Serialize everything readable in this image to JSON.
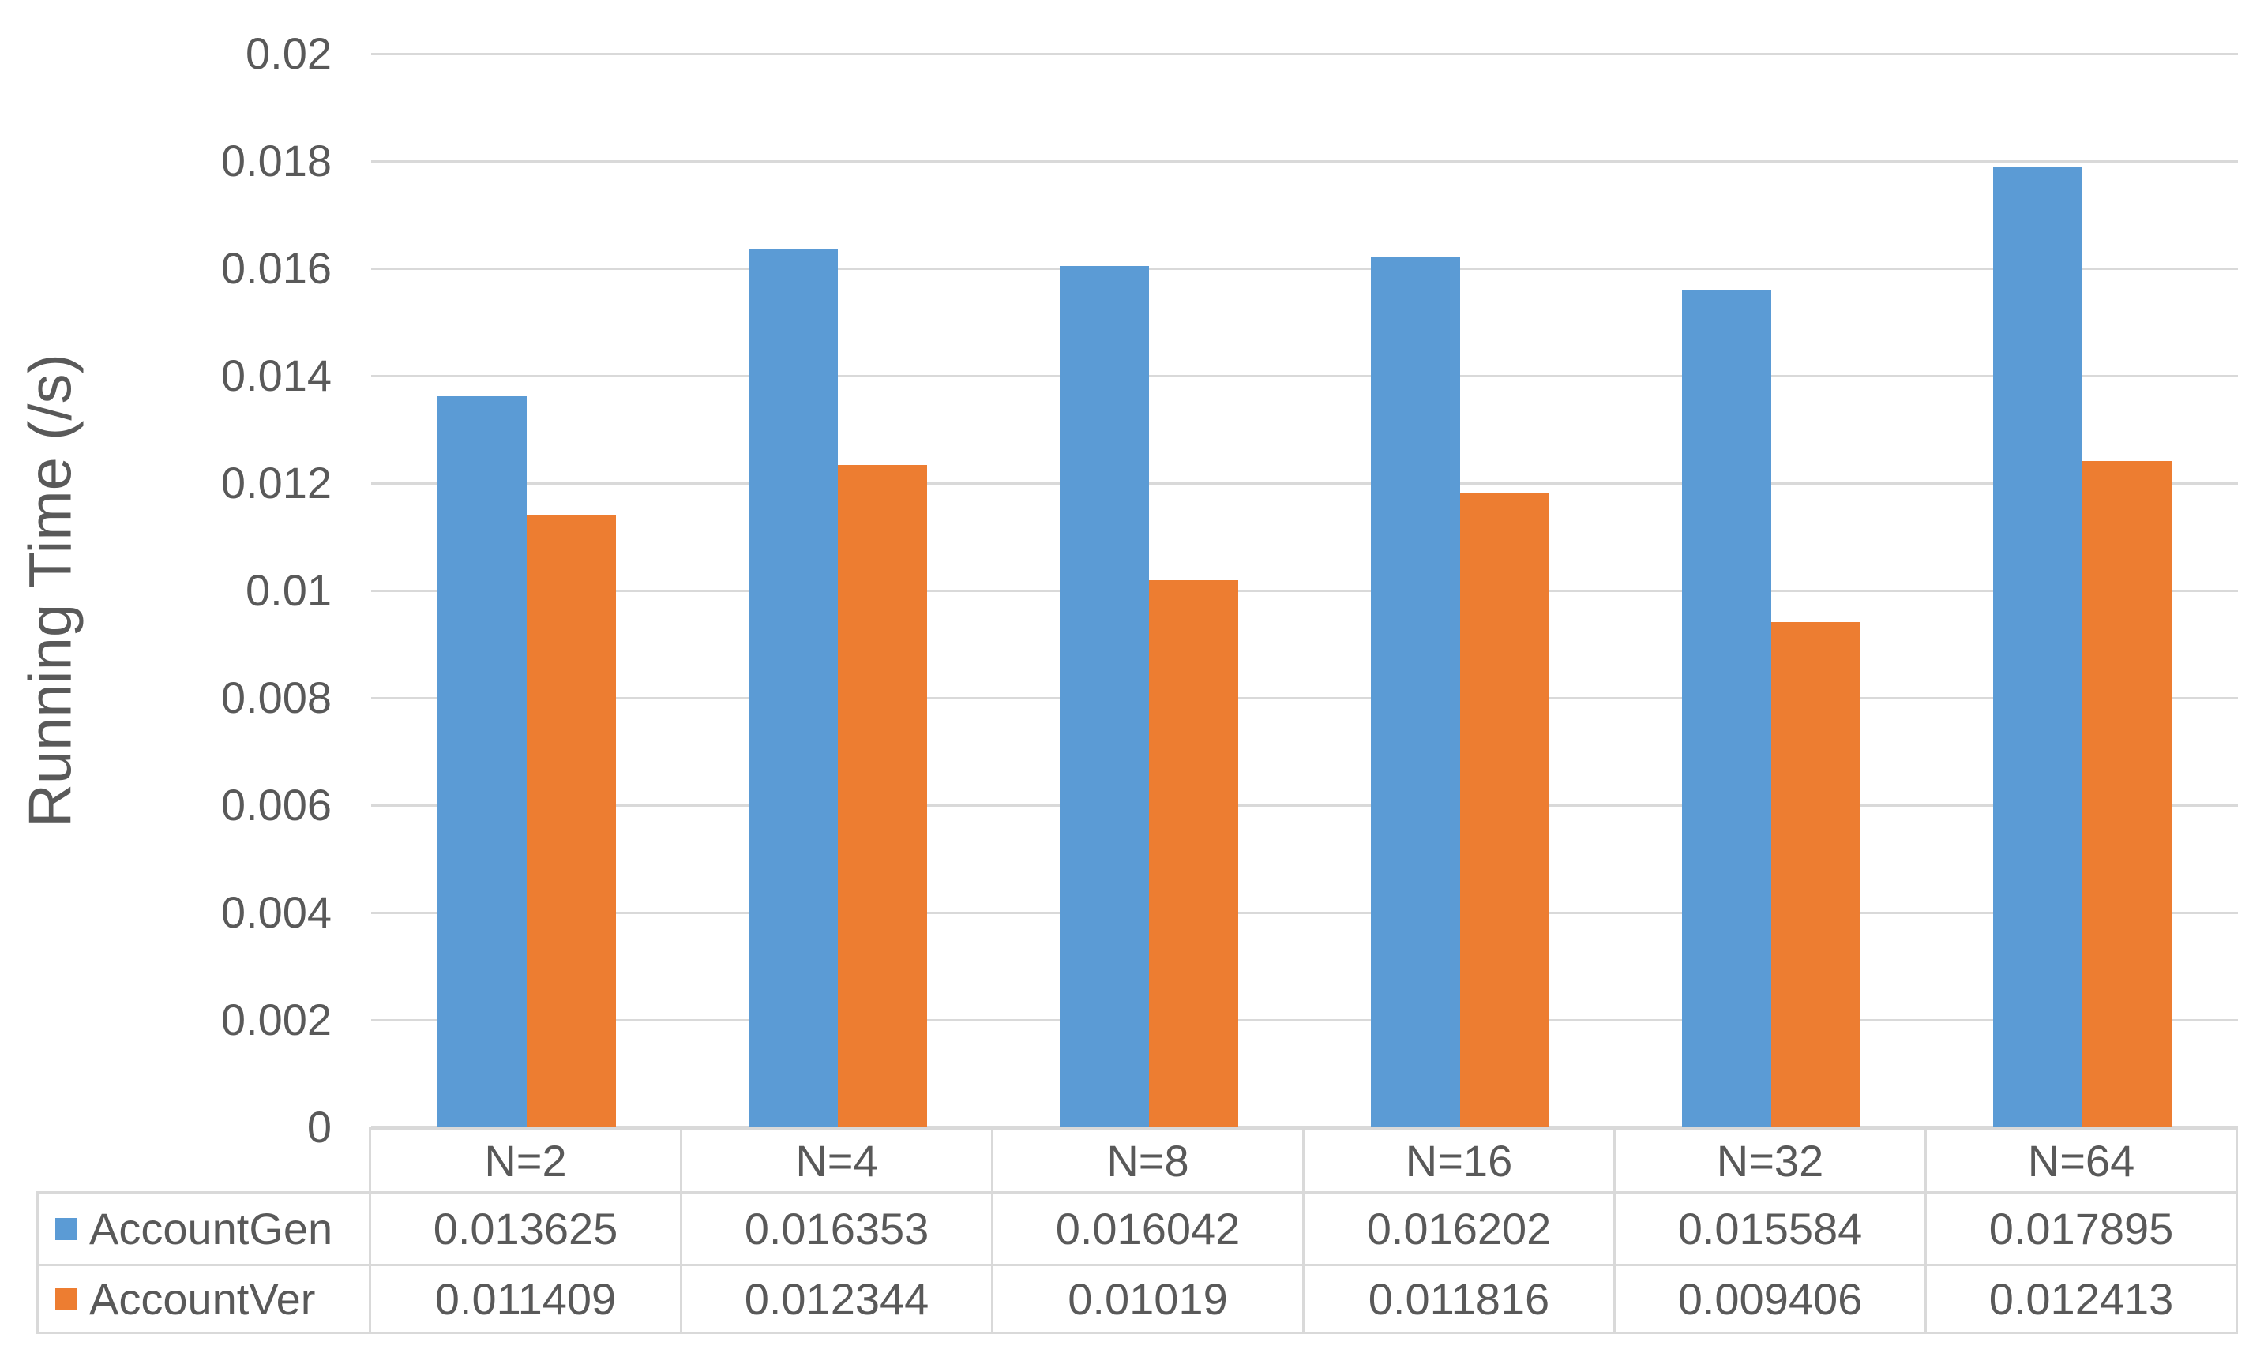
{
  "chart_data": {
    "type": "bar",
    "title": "",
    "ylabel": "Running Time (/s)",
    "xlabel": "",
    "ylim": [
      0,
      0.02
    ],
    "yticks": [
      0,
      0.002,
      0.004,
      0.006,
      0.008,
      0.01,
      0.012,
      0.014,
      0.016,
      0.018,
      0.02
    ],
    "ytick_labels": [
      "0",
      "0.002",
      "0.004",
      "0.006",
      "0.008",
      "0.01",
      "0.012",
      "0.014",
      "0.016",
      "0.018",
      "0.02"
    ],
    "grid": true,
    "legend_position": "data-table-row-headers",
    "categories": [
      "N=2",
      "N=4",
      "N=8",
      "N=16",
      "N=32",
      "N=64"
    ],
    "series": [
      {
        "name": "AccountGen",
        "color": "#5B9BD5",
        "values": [
          0.013625,
          0.016353,
          0.016042,
          0.016202,
          0.015584,
          0.017895
        ],
        "display_values": [
          "0.013625",
          "0.016353",
          "0.016042",
          "0.016202",
          "0.015584",
          "0.017895"
        ]
      },
      {
        "name": "AccountVer",
        "color": "#ED7D31",
        "values": [
          0.011409,
          0.012344,
          0.01019,
          0.011816,
          0.009406,
          0.012413
        ],
        "display_values": [
          "0.011409",
          "0.012344",
          "0.01019",
          "0.011816",
          "0.009406",
          "0.012413"
        ]
      }
    ],
    "data_table_shown": true
  },
  "styles": {
    "background": "#FFFFFF",
    "gridline_color": "#D9D9D9",
    "table_border_color": "#D9D9D9",
    "text_color": "#595959",
    "series_blue": "#5B9BD5",
    "series_orange": "#ED7D31"
  }
}
